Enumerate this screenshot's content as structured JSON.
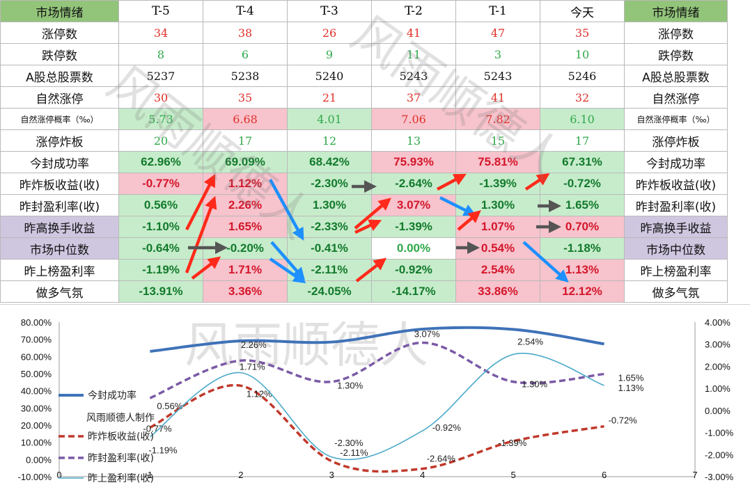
{
  "table": {
    "header": {
      "label": "市场情绪",
      "cols": [
        "T-5",
        "T-4",
        "T-3",
        "T-2",
        "T-1",
        "今天"
      ],
      "right_label": "市场情绪"
    },
    "rows": [
      {
        "label": "涨停数",
        "values": [
          "34",
          "38",
          "26",
          "41",
          "47",
          "35"
        ],
        "kind": "num",
        "colors": [
          "red",
          "red",
          "red",
          "red",
          "red",
          "red"
        ],
        "bgs": [
          "white",
          "white",
          "white",
          "white",
          "white",
          "white"
        ],
        "label_bg": "white"
      },
      {
        "label": "跌停数",
        "values": [
          "8",
          "6",
          "9",
          "11",
          "3",
          "10"
        ],
        "kind": "num",
        "colors": [
          "green",
          "green",
          "green",
          "green",
          "green",
          "green"
        ],
        "bgs": [
          "white",
          "white",
          "white",
          "white",
          "white",
          "white"
        ],
        "label_bg": "white"
      },
      {
        "label": "A股总股票数",
        "values": [
          "5237",
          "5238",
          "5240",
          "5243",
          "5243",
          "5246"
        ],
        "kind": "num",
        "colors": [
          "black",
          "black",
          "black",
          "black",
          "black",
          "black"
        ],
        "bgs": [
          "white",
          "white",
          "white",
          "white",
          "white",
          "white"
        ],
        "label_bg": "white"
      },
      {
        "label": "自然涨停",
        "values": [
          "30",
          "35",
          "21",
          "37",
          "41",
          "32"
        ],
        "kind": "num",
        "colors": [
          "red",
          "red",
          "red",
          "red",
          "red",
          "red"
        ],
        "bgs": [
          "white",
          "white",
          "white",
          "white",
          "white",
          "white"
        ],
        "label_bg": "white"
      },
      {
        "label": "自然涨停概率（‰）",
        "small": true,
        "values": [
          "5.73",
          "6.68",
          "4.01",
          "7.06",
          "7.82",
          "6.10"
        ],
        "kind": "num",
        "colors": [
          "green",
          "red",
          "green",
          "red",
          "red",
          "green"
        ],
        "bgs": [
          "lgreen",
          "pink",
          "lgreen",
          "pink",
          "pink",
          "lgreen"
        ],
        "label_bg": "white"
      },
      {
        "label": "涨停炸板",
        "values": [
          "20",
          "17",
          "12",
          "13",
          "15",
          "17"
        ],
        "kind": "num",
        "colors": [
          "green",
          "green",
          "green",
          "green",
          "green",
          "green"
        ],
        "bgs": [
          "white",
          "white",
          "white",
          "white",
          "white",
          "white"
        ],
        "label_bg": "white"
      },
      {
        "label": "今封成功率",
        "values": [
          "62.96%",
          "69.09%",
          "68.42%",
          "75.93%",
          "75.81%",
          "67.31%"
        ],
        "kind": "pct",
        "colors": [
          "pgreen",
          "pgreen",
          "pgreen",
          "pred",
          "pred",
          "pgreen"
        ],
        "bgs": [
          "lgreen",
          "lgreen",
          "lgreen",
          "pink",
          "pink",
          "lgreen"
        ],
        "label_bg": "white"
      },
      {
        "label": "昨炸板收益(收)",
        "values": [
          "-0.77%",
          "1.12%",
          "-2.30%",
          "-2.64%",
          "-1.39%",
          "-0.72%"
        ],
        "kind": "pct",
        "colors": [
          "pred",
          "pred",
          "pgreen",
          "pgreen",
          "pgreen",
          "pgreen"
        ],
        "bgs": [
          "pink",
          "pink",
          "lgreen",
          "lgreen",
          "lgreen",
          "lgreen"
        ],
        "label_bg": "white"
      },
      {
        "label": "昨封盈利率(收)",
        "values": [
          "0.56%",
          "2.26%",
          "1.30%",
          "3.07%",
          "1.30%",
          "1.65%"
        ],
        "kind": "pct",
        "colors": [
          "pgreen",
          "pred",
          "pgreen",
          "pred",
          "pgreen",
          "pgreen"
        ],
        "bgs": [
          "lgreen",
          "pink",
          "lgreen",
          "pink",
          "lgreen",
          "lgreen"
        ],
        "label_bg": "white"
      },
      {
        "label": "昨高换手收益",
        "values": [
          "-1.10%",
          "1.65%",
          "-2.33%",
          "-1.39%",
          "1.07%",
          "0.70%"
        ],
        "kind": "pct",
        "colors": [
          "pgreen",
          "pred",
          "pgreen",
          "pgreen",
          "pred",
          "pred"
        ],
        "bgs": [
          "lgreen",
          "pink",
          "lgreen",
          "lgreen",
          "pink",
          "pink"
        ],
        "label_bg": "purple"
      },
      {
        "label": "市场中位数",
        "values": [
          "-0.64%",
          "-0.20%",
          "-0.41%",
          "0.00%",
          "0.54%",
          "-1.18%"
        ],
        "kind": "pct",
        "colors": [
          "pgreen",
          "pgreen",
          "pgreen",
          "green",
          "pred",
          "pgreen"
        ],
        "bgs": [
          "lgreen",
          "lgreen",
          "lgreen",
          "white",
          "pink",
          "lgreen"
        ],
        "label_bg": "purple"
      },
      {
        "label": "昨上榜盈利率",
        "values": [
          "-1.19%",
          "1.71%",
          "-2.11%",
          "-0.92%",
          "2.54%",
          "1.13%"
        ],
        "kind": "pct",
        "colors": [
          "pgreen",
          "pred",
          "pgreen",
          "pgreen",
          "pred",
          "pred"
        ],
        "bgs": [
          "lgreen",
          "pink",
          "lgreen",
          "lgreen",
          "pink",
          "pink"
        ],
        "label_bg": "white"
      },
      {
        "label": "做多气氛",
        "values": [
          "-13.91%",
          "3.36%",
          "-24.05%",
          "-14.17%",
          "33.86%",
          "12.12%"
        ],
        "kind": "pct",
        "colors": [
          "pgreen",
          "pred",
          "pgreen",
          "pgreen",
          "pred",
          "pred"
        ],
        "bgs": [
          "lgreen",
          "pink",
          "lgreen",
          "lgreen",
          "pink",
          "pink"
        ],
        "label_bg": "white"
      }
    ]
  },
  "watermark_text": "风雨顺德人",
  "colors": {
    "header_green": "#92c47a",
    "label_purple": "#cfc6e0",
    "cell_pink": "#f7c3cc",
    "cell_green": "#c7eccb",
    "text_red": "#e0302a",
    "text_green": "#2fa84a",
    "pct_red": "#d4162b",
    "pct_green": "#127a2c",
    "arrow_red": "#ff2a1a",
    "arrow_blue": "#1e90ff",
    "arrow_gray": "#555555",
    "series_blue": "#3f72b8",
    "series_red": "#c0392b",
    "series_purple": "#7b5aa6",
    "series_cyan": "#4aa9c9"
  },
  "chart_data": {
    "type": "line",
    "x": [
      1,
      2,
      3,
      4,
      5,
      6
    ],
    "xticks": [
      0,
      1,
      2,
      3,
      4,
      5,
      6,
      7
    ],
    "xlim": [
      0,
      7
    ],
    "left_axis": {
      "ylim": [
        -10,
        80
      ],
      "ticks": [
        "-10.00%",
        "0.00%",
        "10.00%",
        "20.00%",
        "30.00%",
        "40.00%",
        "50.00%",
        "60.00%",
        "70.00%",
        "80.00%"
      ]
    },
    "right_axis": {
      "ylim": [
        -3,
        4
      ],
      "ticks": [
        "-3.00%",
        "-2.00%",
        "-1.00%",
        "0.00%",
        "1.00%",
        "2.00%",
        "3.00%",
        "4.00%"
      ]
    },
    "legend_note": "风雨顺德人制作",
    "series": [
      {
        "name": "今封成功率",
        "axis": "left",
        "values": [
          62.96,
          69.09,
          68.42,
          75.93,
          75.81,
          67.31
        ],
        "labels": [],
        "style": "solid-thick"
      },
      {
        "name": "昨炸板收益(收)",
        "axis": "right",
        "values": [
          -0.77,
          1.12,
          -2.3,
          -2.64,
          -1.39,
          -0.72
        ],
        "labels": [
          "-0.77%",
          "1.12%",
          "-2.30%",
          "-2.64%",
          "-1.39%",
          "-0.72%"
        ],
        "style": "dash-red"
      },
      {
        "name": "昨封盈利率(收)",
        "axis": "right",
        "values": [
          0.56,
          2.26,
          1.3,
          3.07,
          1.3,
          1.65
        ],
        "labels": [
          "0.56%",
          "2.26%",
          "1.30%",
          "3.07%",
          "1.30%",
          "1.65%"
        ],
        "style": "dash-purple"
      },
      {
        "name": "昨上盈利率(收)",
        "axis": "right",
        "values": [
          -1.19,
          1.71,
          -2.11,
          -0.92,
          2.54,
          1.13
        ],
        "labels": [
          "-1.19%",
          "1.71%",
          "-2.11%",
          "-0.92%",
          "2.54%",
          "1.13%"
        ],
        "style": "thin-cyan"
      }
    ]
  }
}
